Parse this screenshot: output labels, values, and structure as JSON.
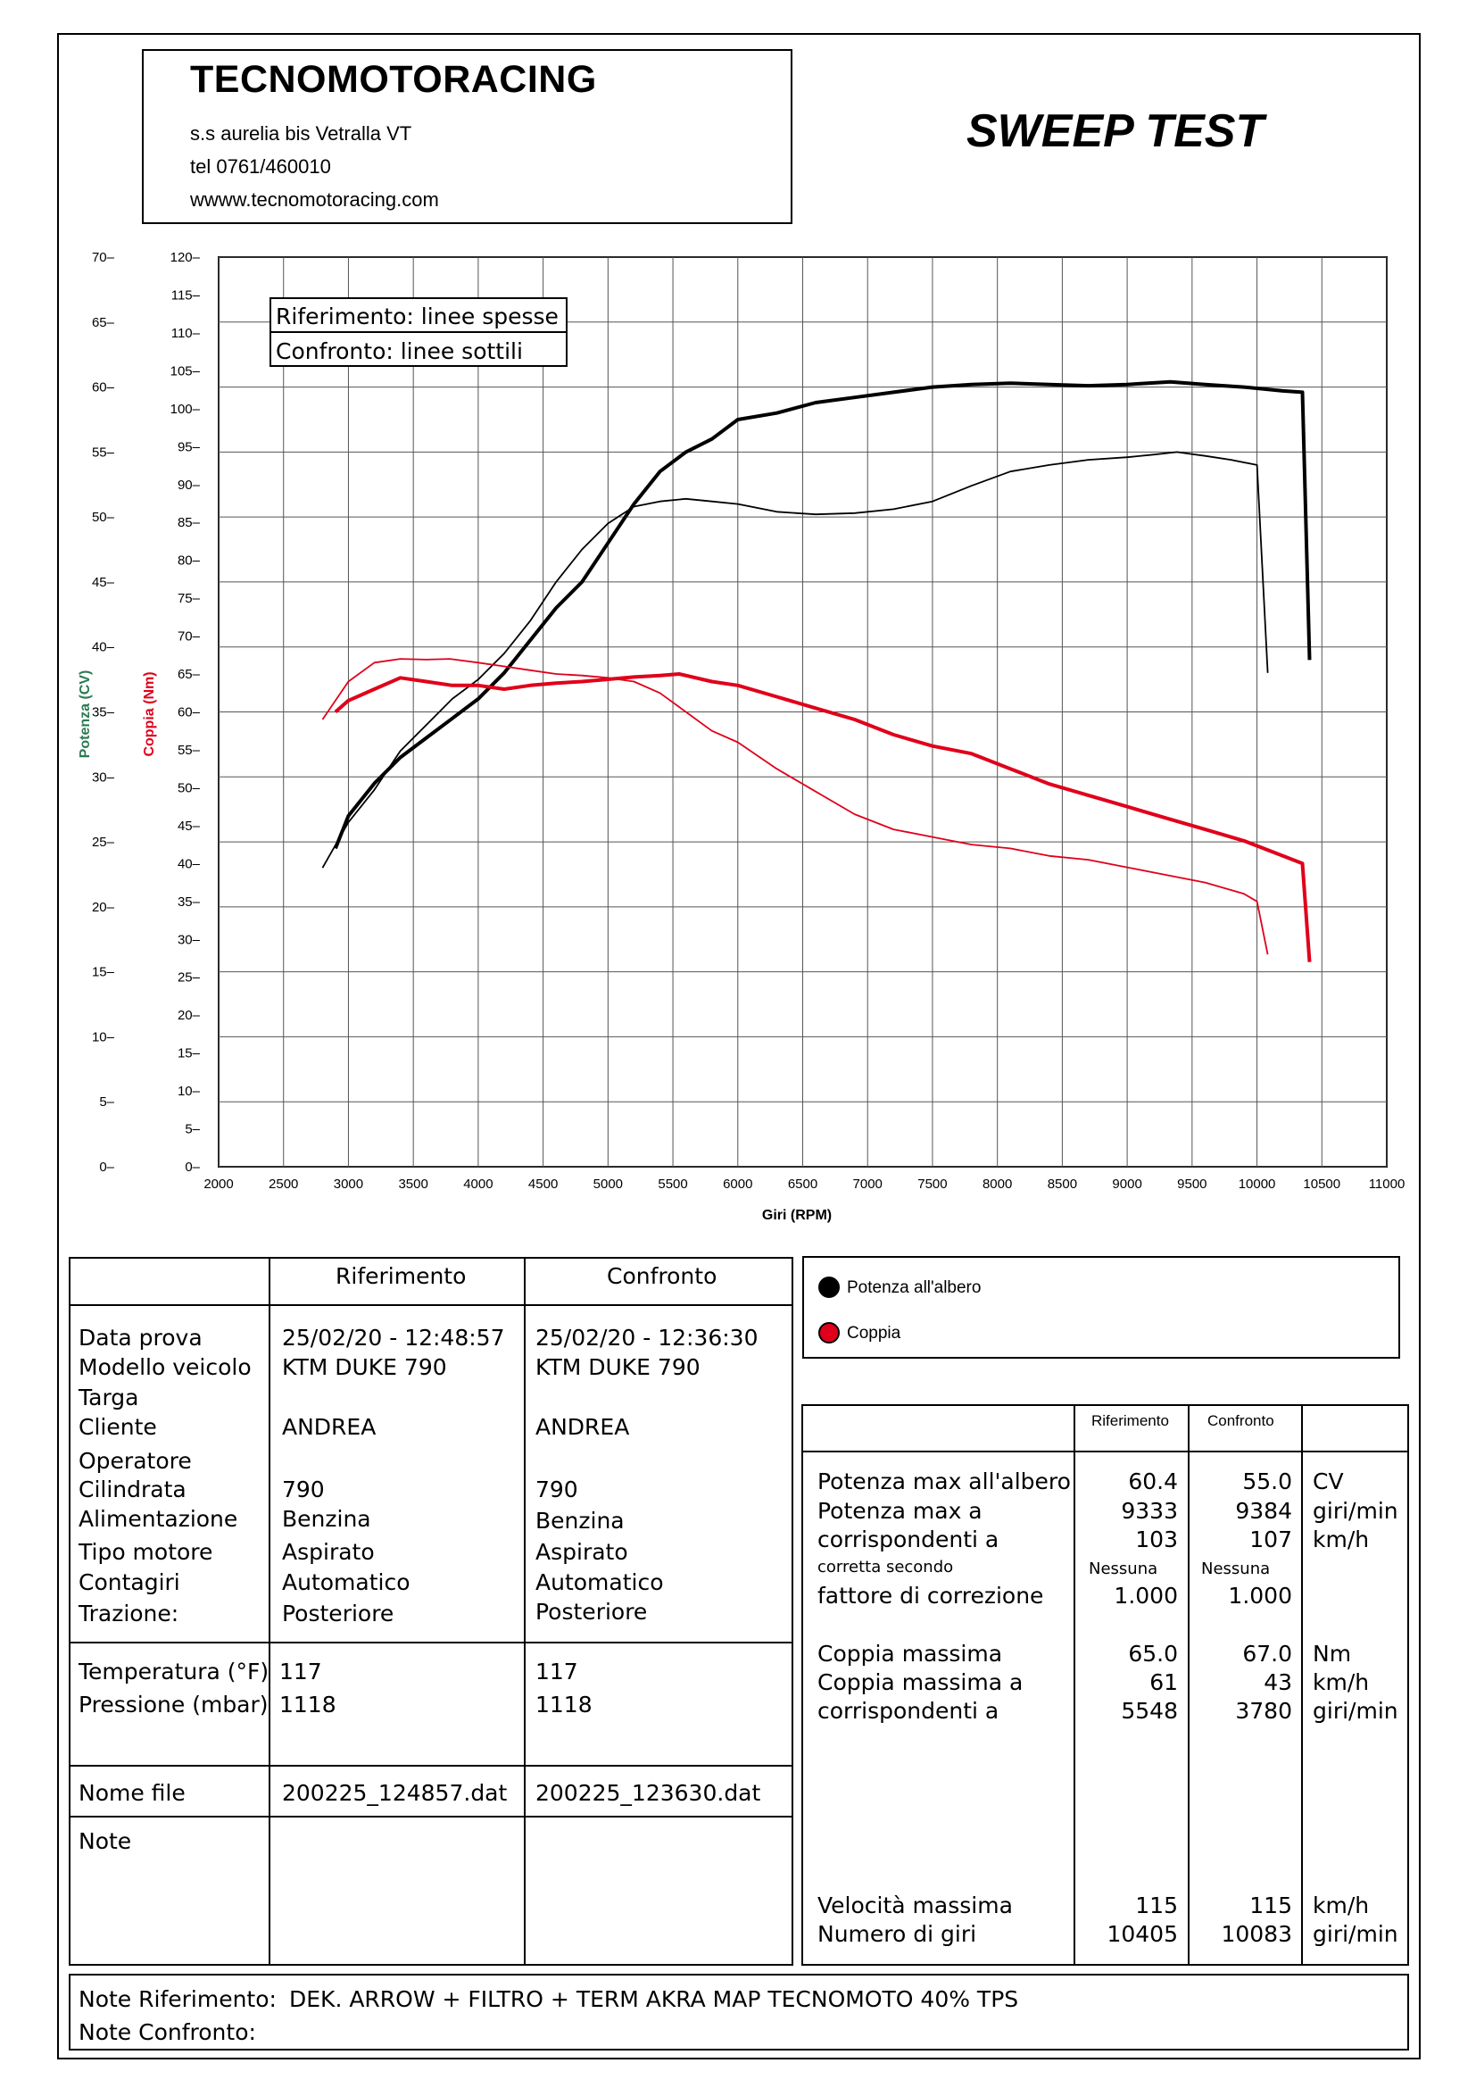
{
  "header": {
    "company": "TECNOMOTORACING",
    "address": "s.s aurelia bis  Vetralla  VT",
    "phone": "tel 0761/460010",
    "website": "wwww.tecnomotoracing.com",
    "title": "SWEEP TEST"
  },
  "chart_legend": {
    "reference": "Riferimento: linee spesse",
    "comparison": "Confronto: linee sottili"
  },
  "chart_data": {
    "type": "line",
    "xlabel": "Giri (RPM)",
    "ylabel_left": "Potenza (CV)",
    "ylabel_right": "Coppia (Nm)",
    "xlim": [
      2000,
      11000
    ],
    "ylim_power": [
      0,
      70
    ],
    "ylim_torque": [
      0,
      120
    ],
    "x_ticks": [
      2000,
      2500,
      3000,
      3500,
      4000,
      4500,
      5000,
      5500,
      6000,
      6500,
      7000,
      7500,
      8000,
      8500,
      9000,
      9500,
      10000,
      10500,
      11000
    ],
    "power_ticks": [
      0,
      5,
      10,
      15,
      20,
      25,
      30,
      35,
      40,
      45,
      50,
      55,
      60,
      65,
      70
    ],
    "torque_ticks": [
      0,
      5,
      10,
      15,
      20,
      25,
      30,
      35,
      40,
      45,
      50,
      55,
      60,
      65,
      70,
      75,
      80,
      85,
      90,
      95,
      100,
      105,
      110,
      115,
      120
    ],
    "grid": true,
    "series": [
      {
        "name": "Potenza all'albero",
        "run": "Riferimento",
        "axis": "power",
        "color": "#000000",
        "width": "thick",
        "x": [
          2900,
          3000,
          3200,
          3400,
          3600,
          3800,
          4000,
          4200,
          4400,
          4600,
          4800,
          5000,
          5200,
          5400,
          5600,
          5800,
          6000,
          6300,
          6600,
          6900,
          7200,
          7500,
          7800,
          8100,
          8400,
          8700,
          9000,
          9333,
          9600,
          9900,
          10200,
          10350,
          10405
        ],
        "y": [
          24.5,
          27,
          29.5,
          31.5,
          33,
          34.5,
          36,
          38,
          40.5,
          43,
          45,
          48,
          51,
          53.5,
          55,
          56,
          57.5,
          58,
          58.8,
          59.2,
          59.6,
          60.0,
          60.2,
          60.3,
          60.2,
          60.1,
          60.2,
          60.4,
          60.2,
          60.0,
          59.7,
          59.6,
          39
        ]
      },
      {
        "name": "Potenza all'albero",
        "run": "Confronto",
        "axis": "power",
        "color": "#000000",
        "width": "thin",
        "x": [
          2800,
          3000,
          3200,
          3400,
          3600,
          3800,
          4000,
          4200,
          4400,
          4600,
          4800,
          5000,
          5200,
          5400,
          5600,
          5800,
          6000,
          6300,
          6600,
          6900,
          7200,
          7500,
          7800,
          8100,
          8400,
          8700,
          9000,
          9200,
          9384,
          9600,
          9800,
          10000,
          10083
        ],
        "y": [
          23,
          26.5,
          29,
          32,
          34,
          36,
          37.5,
          39.5,
          42,
          45,
          47.5,
          49.5,
          50.8,
          51.2,
          51.4,
          51.2,
          51,
          50.4,
          50.2,
          50.3,
          50.6,
          51.2,
          52.4,
          53.5,
          54.0,
          54.4,
          54.6,
          54.8,
          55.0,
          54.7,
          54.4,
          54.0,
          38
        ]
      },
      {
        "name": "Coppia",
        "run": "Riferimento",
        "axis": "torque",
        "color": "#e0001b",
        "width": "thick",
        "x": [
          2900,
          3000,
          3200,
          3400,
          3600,
          3800,
          4000,
          4200,
          4400,
          4600,
          4800,
          5000,
          5200,
          5400,
          5548,
          5800,
          6000,
          6300,
          6600,
          6900,
          7200,
          7500,
          7800,
          8100,
          8400,
          8700,
          9000,
          9300,
          9600,
          9900,
          10200,
          10350,
          10405
        ],
        "y": [
          60,
          61.5,
          63,
          64.5,
          64,
          63.5,
          63.5,
          63,
          63.5,
          63.8,
          64,
          64.3,
          64.6,
          64.8,
          65.0,
          64,
          63.5,
          62,
          60.5,
          59,
          57,
          55.5,
          54.5,
          52.5,
          50.5,
          49,
          47.5,
          46,
          44.5,
          43,
          41,
          40,
          27
        ]
      },
      {
        "name": "Coppia",
        "run": "Confronto",
        "axis": "torque",
        "color": "#e0001b",
        "width": "thin",
        "x": [
          2800,
          3000,
          3200,
          3400,
          3600,
          3780,
          4000,
          4200,
          4400,
          4600,
          4800,
          5000,
          5200,
          5400,
          5600,
          5800,
          6000,
          6300,
          6600,
          6900,
          7200,
          7500,
          7800,
          8100,
          8400,
          8700,
          9000,
          9300,
          9600,
          9900,
          10000,
          10083
        ],
        "y": [
          59,
          64,
          66.5,
          67,
          66.9,
          67.0,
          66.5,
          66,
          65.5,
          65,
          64.8,
          64.5,
          64,
          62.5,
          60,
          57.5,
          56,
          52.5,
          49.5,
          46.5,
          44.5,
          43.5,
          42.5,
          42,
          41,
          40.5,
          39.5,
          38.5,
          37.5,
          36,
          35,
          28
        ]
      }
    ]
  },
  "legend": {
    "power": "Potenza all'albero",
    "torque": "Coppia",
    "power_color": "#000000",
    "torque_color": "#e0001b"
  },
  "vehicle_table": {
    "col_ref": "Riferimento",
    "col_cmp": "Confronto",
    "labels": [
      "Data prova",
      "Modello veicolo",
      "Targa",
      "Cliente",
      "Operatore",
      "Cilindrata",
      "Alimentazione",
      "Tipo motore",
      "Contagiri",
      "Trazione:"
    ],
    "ref": {
      "date": "25/02/20 - 12:48:57",
      "model": "KTM DUKE 790",
      "client": "ANDREA",
      "displacement": "790",
      "fuel": "Benzina",
      "engine": "Aspirato",
      "tach": "Automatico",
      "drive": "Posteriore"
    },
    "cmp": {
      "date": "25/02/20 - 12:36:30",
      "model": "KTM DUKE 790",
      "client": "ANDREA",
      "displacement": "790",
      "fuel": "Benzina",
      "engine": "Aspirato",
      "tach": "Automatico",
      "drive": "Posteriore"
    },
    "temp_label": "Temperatura (°F)",
    "pressure_label": "Pressione (mbar)",
    "ref_temp": "117",
    "cmp_temp": "117",
    "ref_pressure": "1118",
    "cmp_pressure": "1118",
    "file_label": "Nome file",
    "ref_file": "200225_124857.dat",
    "cmp_file": "200225_123630.dat",
    "note_label": "Note"
  },
  "results_table": {
    "col_ref": "Riferimento",
    "col_cmp": "Confronto",
    "rows": [
      {
        "label": "Potenza max all'albero",
        "ref": "60.4",
        "cmp": "55.0",
        "unit": "CV"
      },
      {
        "label": "Potenza max a",
        "ref": "9333",
        "cmp": "9384",
        "unit": "giri/min"
      },
      {
        "label": "corrispondenti a",
        "ref": "103",
        "cmp": "107",
        "unit": "km/h"
      }
    ],
    "correction_small": "corretta secondo",
    "correction_ref_small": "Nessuna",
    "correction_cmp_small": "Nessuna",
    "correction_label": "fattore di correzione",
    "correction_ref": "1.000",
    "correction_cmp": "1.000",
    "torque_rows": [
      {
        "label": "Coppia massima",
        "ref": "65.0",
        "cmp": "67.0",
        "unit": "Nm"
      },
      {
        "label": "Coppia massima a",
        "ref": "61",
        "cmp": "43",
        "unit": "km/h"
      },
      {
        "label": "corrispondenti a",
        "ref": "5548",
        "cmp": "3780",
        "unit": "giri/min"
      }
    ],
    "speed_rows": [
      {
        "label": "Velocità massima",
        "ref": "115",
        "cmp": "115",
        "unit": "km/h"
      },
      {
        "label": "Numero di giri",
        "ref": "10405",
        "cmp": "10083",
        "unit": "giri/min"
      }
    ]
  },
  "notes": {
    "ref_label": "Note Riferimento:",
    "ref_text": "DEK. ARROW + FILTRO  + TERM AKRA MAP TECNOMOTO 40% TPS",
    "cmp_label": "Note Confronto:",
    "cmp_text": ""
  }
}
